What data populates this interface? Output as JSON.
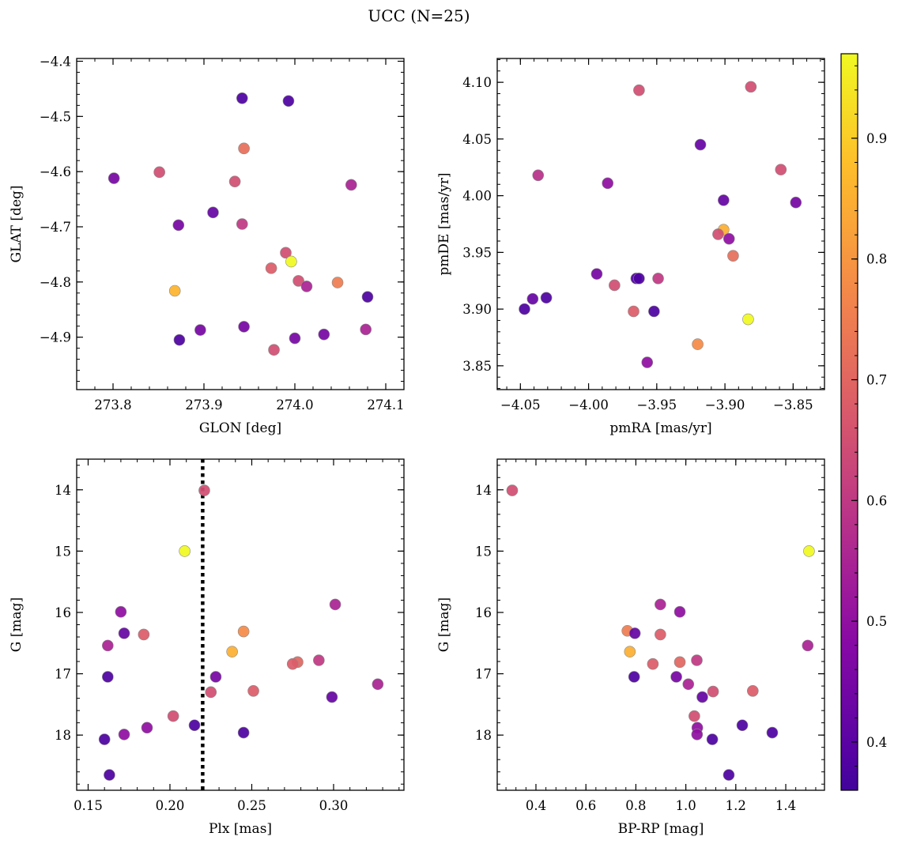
{
  "figure": {
    "title": "UCC (N=25)"
  },
  "colorbar": {
    "colormap": "plasma",
    "range": [
      0.36,
      0.97
    ],
    "ticks": [
      0.4,
      0.5,
      0.6,
      0.7,
      0.8,
      0.9
    ],
    "tick_labels": [
      "0.4",
      "0.5",
      "0.6",
      "0.7",
      "0.8",
      "0.9"
    ]
  },
  "chart_data": [
    {
      "type": "scatter",
      "xlabel": "GLON [deg]",
      "ylabel": "GLAT [deg]",
      "xlim": [
        273.76,
        274.12
      ],
      "ylim": [
        -4.995,
        -4.395
      ],
      "xticks": [
        273.8,
        273.9,
        274.0,
        274.1
      ],
      "xtick_labels": [
        "273.8",
        "273.9",
        "274.0",
        "274.1"
      ],
      "yticks": [
        -4.9,
        -4.8,
        -4.7,
        -4.6,
        -4.5,
        -4.4
      ],
      "ytick_labels": [
        "−4.9",
        "−4.8",
        "−4.7",
        "−4.6",
        "−4.5",
        "−4.4"
      ],
      "y_inverted": false,
      "points": [
        {
          "x": 273.942,
          "y": -4.467,
          "c": 0.38
        },
        {
          "x": 273.993,
          "y": -4.472,
          "c": 0.38
        },
        {
          "x": 273.944,
          "y": -4.558,
          "c": 0.72
        },
        {
          "x": 273.801,
          "y": -4.612,
          "c": 0.45
        },
        {
          "x": 273.851,
          "y": -4.601,
          "c": 0.65
        },
        {
          "x": 273.934,
          "y": -4.618,
          "c": 0.65
        },
        {
          "x": 274.062,
          "y": -4.624,
          "c": 0.55
        },
        {
          "x": 273.91,
          "y": -4.674,
          "c": 0.42
        },
        {
          "x": 273.872,
          "y": -4.697,
          "c": 0.45
        },
        {
          "x": 273.942,
          "y": -4.695,
          "c": 0.6
        },
        {
          "x": 273.99,
          "y": -4.747,
          "c": 0.65
        },
        {
          "x": 273.996,
          "y": -4.763,
          "c": 0.97
        },
        {
          "x": 273.974,
          "y": -4.775,
          "c": 0.68
        },
        {
          "x": 274.004,
          "y": -4.798,
          "c": 0.65
        },
        {
          "x": 274.013,
          "y": -4.808,
          "c": 0.55
        },
        {
          "x": 274.047,
          "y": -4.801,
          "c": 0.75
        },
        {
          "x": 273.868,
          "y": -4.816,
          "c": 0.86
        },
        {
          "x": 274.08,
          "y": -4.827,
          "c": 0.38
        },
        {
          "x": 273.944,
          "y": -4.881,
          "c": 0.45
        },
        {
          "x": 273.896,
          "y": -4.887,
          "c": 0.45
        },
        {
          "x": 274.078,
          "y": -4.886,
          "c": 0.55
        },
        {
          "x": 274.032,
          "y": -4.895,
          "c": 0.45
        },
        {
          "x": 273.873,
          "y": -4.905,
          "c": 0.38
        },
        {
          "x": 274.0,
          "y": -4.902,
          "c": 0.45
        },
        {
          "x": 273.977,
          "y": -4.923,
          "c": 0.65
        }
      ]
    },
    {
      "type": "scatter",
      "xlabel": "pmRA [mas/yr]",
      "ylabel": "pmDE [mas/yr]",
      "xlim": [
        -4.067,
        -3.827
      ],
      "ylim": [
        3.829,
        4.121
      ],
      "xticks": [
        -4.05,
        -4.0,
        -3.95,
        -3.9,
        -3.85
      ],
      "xtick_labels": [
        "−4.05",
        "−4.00",
        "−3.95",
        "−3.90",
        "−3.85"
      ],
      "yticks": [
        3.85,
        3.9,
        3.95,
        4.0,
        4.05,
        4.1
      ],
      "ytick_labels": [
        "3.85",
        "3.90",
        "3.95",
        "4.00",
        "4.05",
        "4.10"
      ],
      "y_inverted": false,
      "points": [
        {
          "x": -3.963,
          "y": 4.093,
          "c": 0.65
        },
        {
          "x": -3.881,
          "y": 4.096,
          "c": 0.65
        },
        {
          "x": -3.918,
          "y": 4.045,
          "c": 0.42
        },
        {
          "x": -3.859,
          "y": 4.023,
          "c": 0.65
        },
        {
          "x": -4.037,
          "y": 4.018,
          "c": 0.58
        },
        {
          "x": -3.986,
          "y": 4.011,
          "c": 0.5
        },
        {
          "x": -3.901,
          "y": 3.996,
          "c": 0.42
        },
        {
          "x": -3.848,
          "y": 3.994,
          "c": 0.45
        },
        {
          "x": -3.901,
          "y": 3.97,
          "c": 0.85
        },
        {
          "x": -3.905,
          "y": 3.966,
          "c": 0.65
        },
        {
          "x": -3.897,
          "y": 3.962,
          "c": 0.5
        },
        {
          "x": -3.894,
          "y": 3.947,
          "c": 0.72
        },
        {
          "x": -3.994,
          "y": 3.931,
          "c": 0.45
        },
        {
          "x": -3.965,
          "y": 3.927,
          "c": 0.38
        },
        {
          "x": -3.963,
          "y": 3.927,
          "c": 0.38
        },
        {
          "x": -3.949,
          "y": 3.927,
          "c": 0.6
        },
        {
          "x": -3.981,
          "y": 3.921,
          "c": 0.65
        },
        {
          "x": -4.041,
          "y": 3.909,
          "c": 0.42
        },
        {
          "x": -4.031,
          "y": 3.91,
          "c": 0.38
        },
        {
          "x": -4.047,
          "y": 3.9,
          "c": 0.38
        },
        {
          "x": -3.967,
          "y": 3.898,
          "c": 0.68
        },
        {
          "x": -3.952,
          "y": 3.898,
          "c": 0.38
        },
        {
          "x": -3.883,
          "y": 3.891,
          "c": 0.97
        },
        {
          "x": -3.92,
          "y": 3.869,
          "c": 0.78
        },
        {
          "x": -3.957,
          "y": 3.853,
          "c": 0.5
        }
      ]
    },
    {
      "type": "scatter",
      "xlabel": "Plx [mas]",
      "ylabel": "G [mag]",
      "xlim": [
        0.143,
        0.343
      ],
      "ylim": [
        13.5,
        18.9
      ],
      "xticks": [
        0.15,
        0.2,
        0.25,
        0.3
      ],
      "xtick_labels": [
        "0.15",
        "0.20",
        "0.25",
        "0.30"
      ],
      "yticks": [
        14,
        15,
        16,
        17,
        18
      ],
      "ytick_labels": [
        "14",
        "15",
        "16",
        "17",
        "18"
      ],
      "y_inverted": true,
      "vline": {
        "x": 0.22,
        "style": "dotted",
        "color": "#000000"
      },
      "points": [
        {
          "x": 0.221,
          "y": 14.01,
          "c": 0.65
        },
        {
          "x": 0.209,
          "y": 15.0,
          "c": 0.97
        },
        {
          "x": 0.17,
          "y": 15.99,
          "c": 0.5
        },
        {
          "x": 0.301,
          "y": 15.87,
          "c": 0.55
        },
        {
          "x": 0.172,
          "y": 16.34,
          "c": 0.42
        },
        {
          "x": 0.184,
          "y": 16.36,
          "c": 0.68
        },
        {
          "x": 0.245,
          "y": 16.31,
          "c": 0.78
        },
        {
          "x": 0.162,
          "y": 16.54,
          "c": 0.55
        },
        {
          "x": 0.238,
          "y": 16.64,
          "c": 0.85
        },
        {
          "x": 0.291,
          "y": 16.78,
          "c": 0.6
        },
        {
          "x": 0.278,
          "y": 16.81,
          "c": 0.7
        },
        {
          "x": 0.275,
          "y": 16.84,
          "c": 0.68
        },
        {
          "x": 0.162,
          "y": 17.05,
          "c": 0.38
        },
        {
          "x": 0.228,
          "y": 17.05,
          "c": 0.45
        },
        {
          "x": 0.327,
          "y": 17.17,
          "c": 0.55
        },
        {
          "x": 0.225,
          "y": 17.3,
          "c": 0.65
        },
        {
          "x": 0.251,
          "y": 17.28,
          "c": 0.68
        },
        {
          "x": 0.299,
          "y": 17.38,
          "c": 0.42
        },
        {
          "x": 0.202,
          "y": 17.69,
          "c": 0.65
        },
        {
          "x": 0.215,
          "y": 17.84,
          "c": 0.38
        },
        {
          "x": 0.186,
          "y": 17.88,
          "c": 0.5
        },
        {
          "x": 0.245,
          "y": 17.96,
          "c": 0.38
        },
        {
          "x": 0.172,
          "y": 17.99,
          "c": 0.5
        },
        {
          "x": 0.16,
          "y": 18.07,
          "c": 0.38
        },
        {
          "x": 0.163,
          "y": 18.65,
          "c": 0.38
        }
      ]
    },
    {
      "type": "scatter",
      "xlabel": "BP-RP [mag]",
      "ylabel": "G [mag]",
      "xlim": [
        0.245,
        1.555
      ],
      "ylim": [
        13.5,
        18.9
      ],
      "xticks": [
        0.4,
        0.6,
        0.8,
        1.0,
        1.2,
        1.4
      ],
      "xtick_labels": [
        "0.4",
        "0.6",
        "0.8",
        "1.0",
        "1.2",
        "1.4"
      ],
      "yticks": [
        14,
        15,
        16,
        17,
        18
      ],
      "ytick_labels": [
        "14",
        "15",
        "16",
        "17",
        "18"
      ],
      "y_inverted": true,
      "points": [
        {
          "x": 0.305,
          "y": 14.01,
          "c": 0.65
        },
        {
          "x": 1.493,
          "y": 15.0,
          "c": 0.97
        },
        {
          "x": 0.898,
          "y": 15.87,
          "c": 0.55
        },
        {
          "x": 0.976,
          "y": 15.99,
          "c": 0.5
        },
        {
          "x": 0.766,
          "y": 16.3,
          "c": 0.75
        },
        {
          "x": 0.796,
          "y": 16.34,
          "c": 0.42
        },
        {
          "x": 0.898,
          "y": 16.36,
          "c": 0.68
        },
        {
          "x": 1.488,
          "y": 16.54,
          "c": 0.55
        },
        {
          "x": 0.776,
          "y": 16.64,
          "c": 0.85
        },
        {
          "x": 1.044,
          "y": 16.78,
          "c": 0.6
        },
        {
          "x": 0.976,
          "y": 16.81,
          "c": 0.7
        },
        {
          "x": 0.868,
          "y": 16.84,
          "c": 0.68
        },
        {
          "x": 0.793,
          "y": 17.05,
          "c": 0.38
        },
        {
          "x": 0.962,
          "y": 17.05,
          "c": 0.45
        },
        {
          "x": 1.01,
          "y": 17.17,
          "c": 0.55
        },
        {
          "x": 1.109,
          "y": 17.29,
          "c": 0.65
        },
        {
          "x": 1.268,
          "y": 17.28,
          "c": 0.68
        },
        {
          "x": 1.066,
          "y": 17.38,
          "c": 0.42
        },
        {
          "x": 1.034,
          "y": 17.69,
          "c": 0.65
        },
        {
          "x": 1.226,
          "y": 17.84,
          "c": 0.38
        },
        {
          "x": 1.046,
          "y": 17.88,
          "c": 0.5
        },
        {
          "x": 1.346,
          "y": 17.96,
          "c": 0.38
        },
        {
          "x": 1.045,
          "y": 17.99,
          "c": 0.5
        },
        {
          "x": 1.106,
          "y": 18.07,
          "c": 0.38
        },
        {
          "x": 1.172,
          "y": 18.65,
          "c": 0.38
        }
      ]
    }
  ]
}
